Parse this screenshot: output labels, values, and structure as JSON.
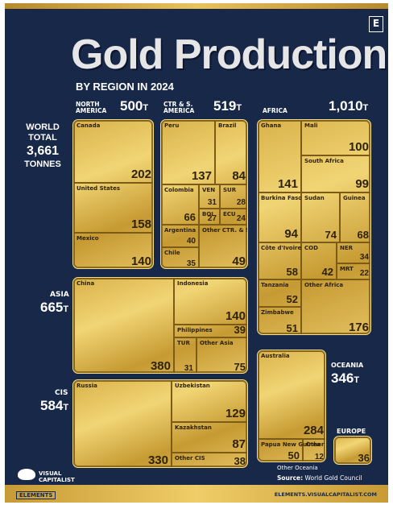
{
  "header": {
    "title": "Gold Production",
    "subtitle": "BY REGION IN 2024",
    "badge": "E"
  },
  "world_total": {
    "label_line1": "WORLD",
    "label_line2": "TOTAL",
    "value": "3,661",
    "unit": "TONNES"
  },
  "chart_data": {
    "type": "treemap",
    "title": "Gold Production",
    "subtitle": "BY REGION IN 2024",
    "unit": "T",
    "regions": [
      {
        "name": "NORTH AMERICA",
        "total": 500,
        "items": [
          {
            "name": "Canada",
            "value": 202
          },
          {
            "name": "United States",
            "value": 158
          },
          {
            "name": "Mexico",
            "value": 140
          }
        ]
      },
      {
        "name": "CTR & S. AMERICA",
        "total": 519,
        "items": [
          {
            "name": "Peru",
            "value": 137
          },
          {
            "name": "Brazil",
            "value": 84
          },
          {
            "name": "Colombia",
            "value": 66
          },
          {
            "name": "VEN",
            "value": 31
          },
          {
            "name": "SUR",
            "value": 28
          },
          {
            "name": "BOL",
            "value": 27
          },
          {
            "name": "ECU",
            "value": 24
          },
          {
            "name": "Argentina",
            "value": 40
          },
          {
            "name": "Chile",
            "value": 35
          },
          {
            "name": "Other CTR. & S. America",
            "value": 49
          }
        ]
      },
      {
        "name": "AFRICA",
        "total": 1010,
        "items": [
          {
            "name": "Ghana",
            "value": 141
          },
          {
            "name": "Mali",
            "value": 100
          },
          {
            "name": "South Africa",
            "value": 99
          },
          {
            "name": "Burkina Faso",
            "value": 94
          },
          {
            "name": "Sudan",
            "value": 74
          },
          {
            "name": "Guinea",
            "value": 68
          },
          {
            "name": "Côte d'Ivoire",
            "value": 58
          },
          {
            "name": "COD",
            "value": 42
          },
          {
            "name": "NER",
            "value": 34
          },
          {
            "name": "MRT",
            "value": 22
          },
          {
            "name": "Tanzania",
            "value": 52
          },
          {
            "name": "Zimbabwe",
            "value": 51
          },
          {
            "name": "Other Africa",
            "value": 176
          }
        ]
      },
      {
        "name": "ASIA",
        "total": 665,
        "items": [
          {
            "name": "China",
            "value": 380
          },
          {
            "name": "Indonesia",
            "value": 140
          },
          {
            "name": "Philippines",
            "value": 39
          },
          {
            "name": "TUR",
            "value": 31
          },
          {
            "name": "Other Asia",
            "value": 75
          }
        ]
      },
      {
        "name": "CIS",
        "total": 584,
        "items": [
          {
            "name": "Russia",
            "value": 330
          },
          {
            "name": "Uzbekistan",
            "value": 129
          },
          {
            "name": "Kazakhstan",
            "value": 87
          },
          {
            "name": "Other CIS",
            "value": 38
          }
        ]
      },
      {
        "name": "OCEANIA",
        "total": 346,
        "items": [
          {
            "name": "Australia",
            "value": 284
          },
          {
            "name": "Papua New Guinea",
            "value": 50
          },
          {
            "name": "Other Oceania",
            "value": 12
          }
        ]
      },
      {
        "name": "EUROPE",
        "total": 36,
        "items": [
          {
            "name": "",
            "value": 36
          }
        ]
      }
    ]
  },
  "labels": {
    "north_america": {
      "name": "NORTH\nAMERICA",
      "total": "500"
    },
    "ctr_s_america": {
      "name": "CTR & S.\nAMERICA",
      "total": "519"
    },
    "africa": {
      "name": "AFRICA",
      "total": "1,010"
    },
    "asia": {
      "name": "ASIA",
      "total": "665"
    },
    "cis": {
      "name": "CIS",
      "total": "584"
    },
    "oceania": {
      "name": "OCEANIA",
      "total": "346"
    },
    "europe": {
      "name": "EUROPE"
    },
    "unit": "T"
  },
  "footer": {
    "other_oceania": "Other Oceania",
    "source_label": "Source:",
    "source_value": "World Gold Council",
    "brand_line1": "VISUAL",
    "brand_line2": "CAPITALIST",
    "elements": "ELEMENTS",
    "url": "ELEMENTS.VISUALCAPITALIST.COM"
  }
}
